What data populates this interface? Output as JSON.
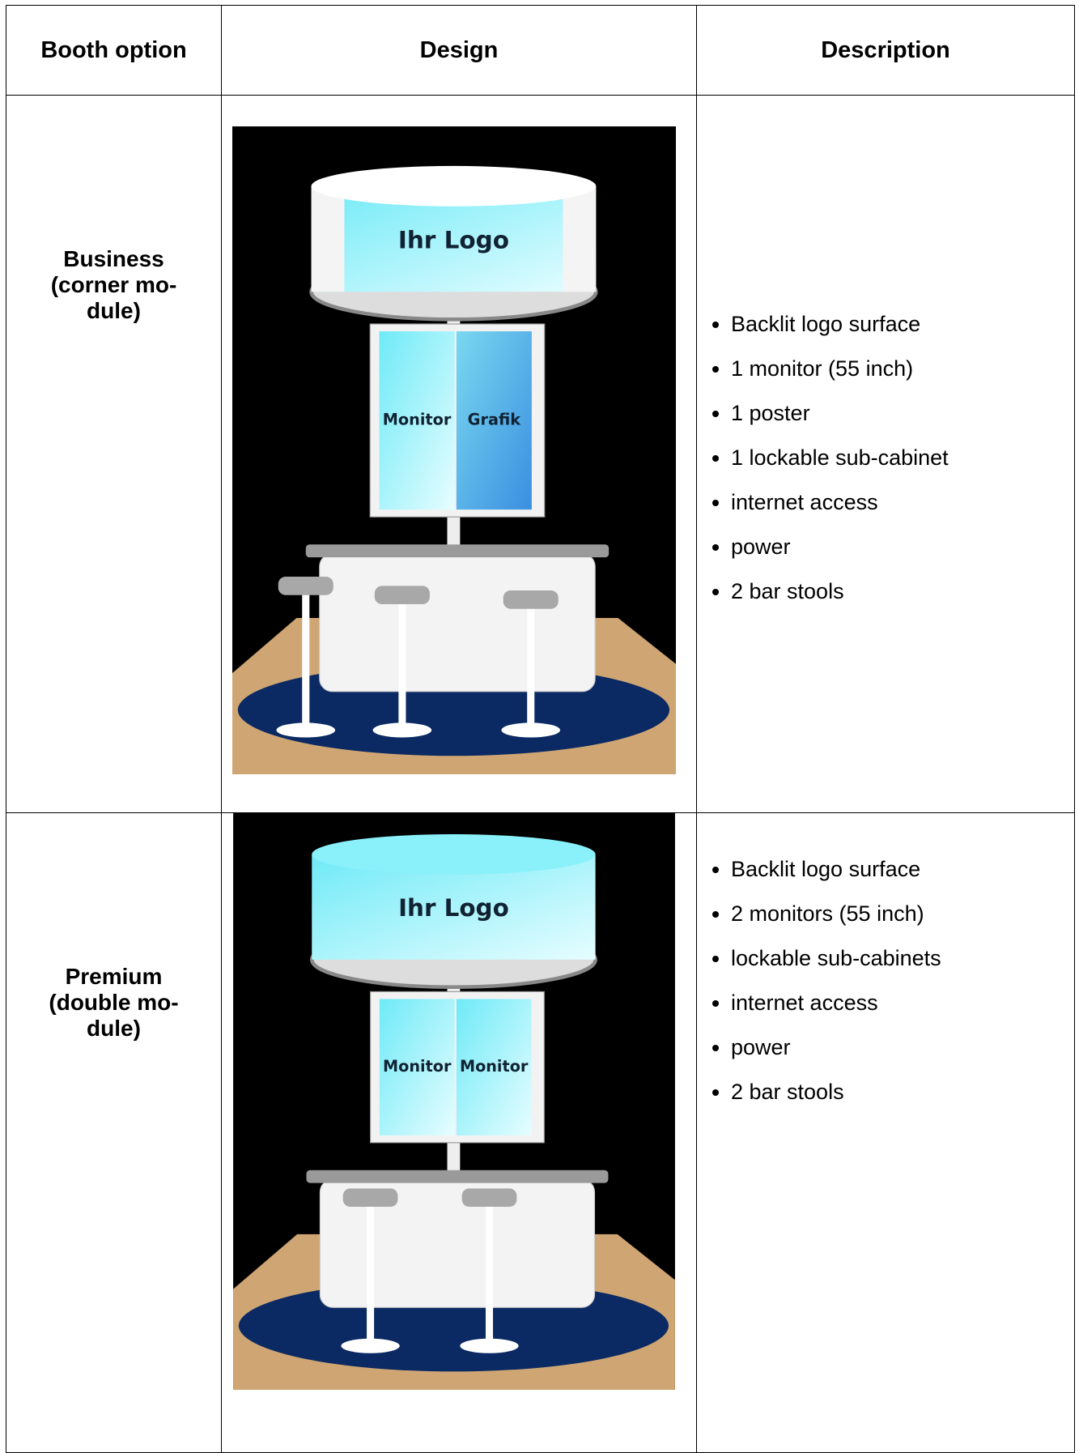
{
  "table": {
    "header": [
      "Booth option",
      "Design",
      "Description"
    ],
    "rows": [
      {
        "option": [
          "Business",
          "(corner mo-",
          "dule)"
        ],
        "design": {
          "logo": "Ihr Logo",
          "panels": [
            "Monitor",
            "Grafik"
          ]
        },
        "description": [
          "Backlit logo surface",
          "1 monitor (55 inch)",
          "1 poster",
          "1 lockable sub-cabinet",
          "internet access",
          "power",
          "2 bar stools"
        ]
      },
      {
        "option": [
          "Premium",
          "(double mo-",
          "dule)"
        ],
        "design": {
          "logo": "Ihr Logo",
          "panels": [
            "Monitor",
            "Monitor"
          ]
        },
        "description": [
          "Backlit logo surface",
          "2 monitors (55 inch)",
          "lockable sub-cabinets",
          "internet access",
          "power",
          "2 bar stools"
        ]
      }
    ]
  }
}
